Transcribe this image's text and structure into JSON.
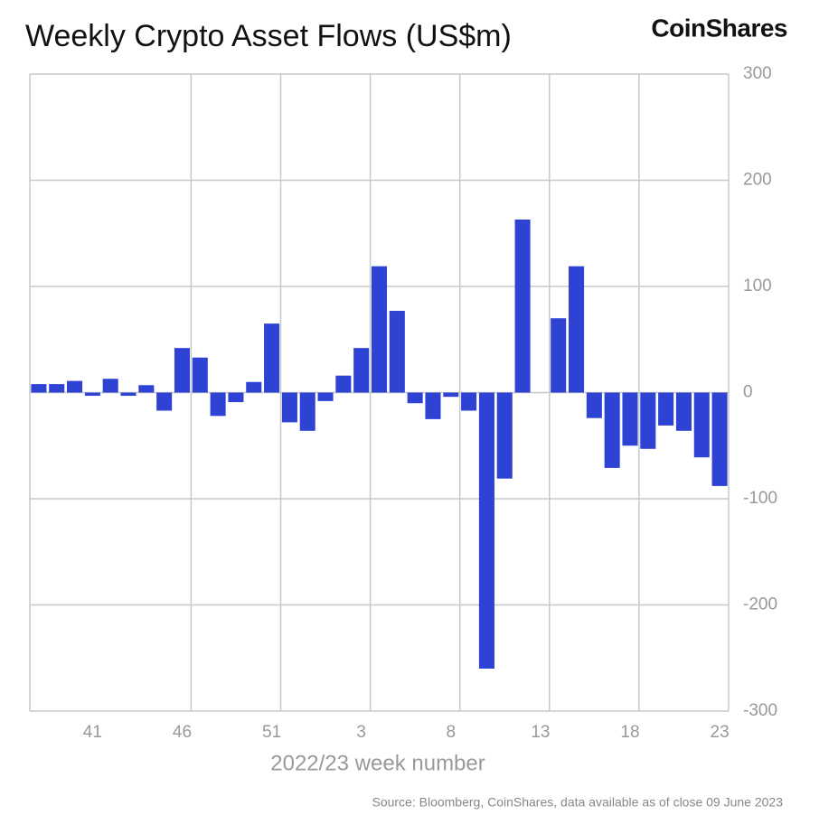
{
  "chart_data": {
    "type": "bar",
    "title": "Weekly Crypto Asset Flows (US$m)",
    "brand": "CoinShares",
    "x_label": "2022/23 week number",
    "source": "Source: Bloomberg, CoinShares, data available as of close 09 June 2023",
    "categories": [
      null,
      null,
      null,
      "41",
      null,
      null,
      null,
      null,
      "46",
      null,
      null,
      null,
      null,
      "51",
      null,
      null,
      null,
      null,
      "3",
      null,
      null,
      null,
      null,
      "8",
      null,
      null,
      null,
      null,
      "13",
      null,
      null,
      null,
      null,
      "18",
      null,
      null,
      null,
      null,
      "23"
    ],
    "values": [
      8,
      8,
      11,
      -3,
      13,
      -3,
      7,
      -17,
      42,
      33,
      -22,
      -9,
      10,
      65,
      -28,
      -36,
      -8,
      16,
      42,
      119,
      77,
      -10,
      -25,
      -4,
      -17,
      -260,
      -81,
      163,
      0,
      70,
      119,
      -24,
      -71,
      -50,
      -53,
      -31,
      -36,
      -61,
      -88
    ],
    "color": "#2e42d4",
    "ylim": [
      -300,
      300
    ],
    "yticks": [
      -300,
      -200,
      -100,
      0,
      100,
      200,
      300
    ],
    "grid": true
  }
}
